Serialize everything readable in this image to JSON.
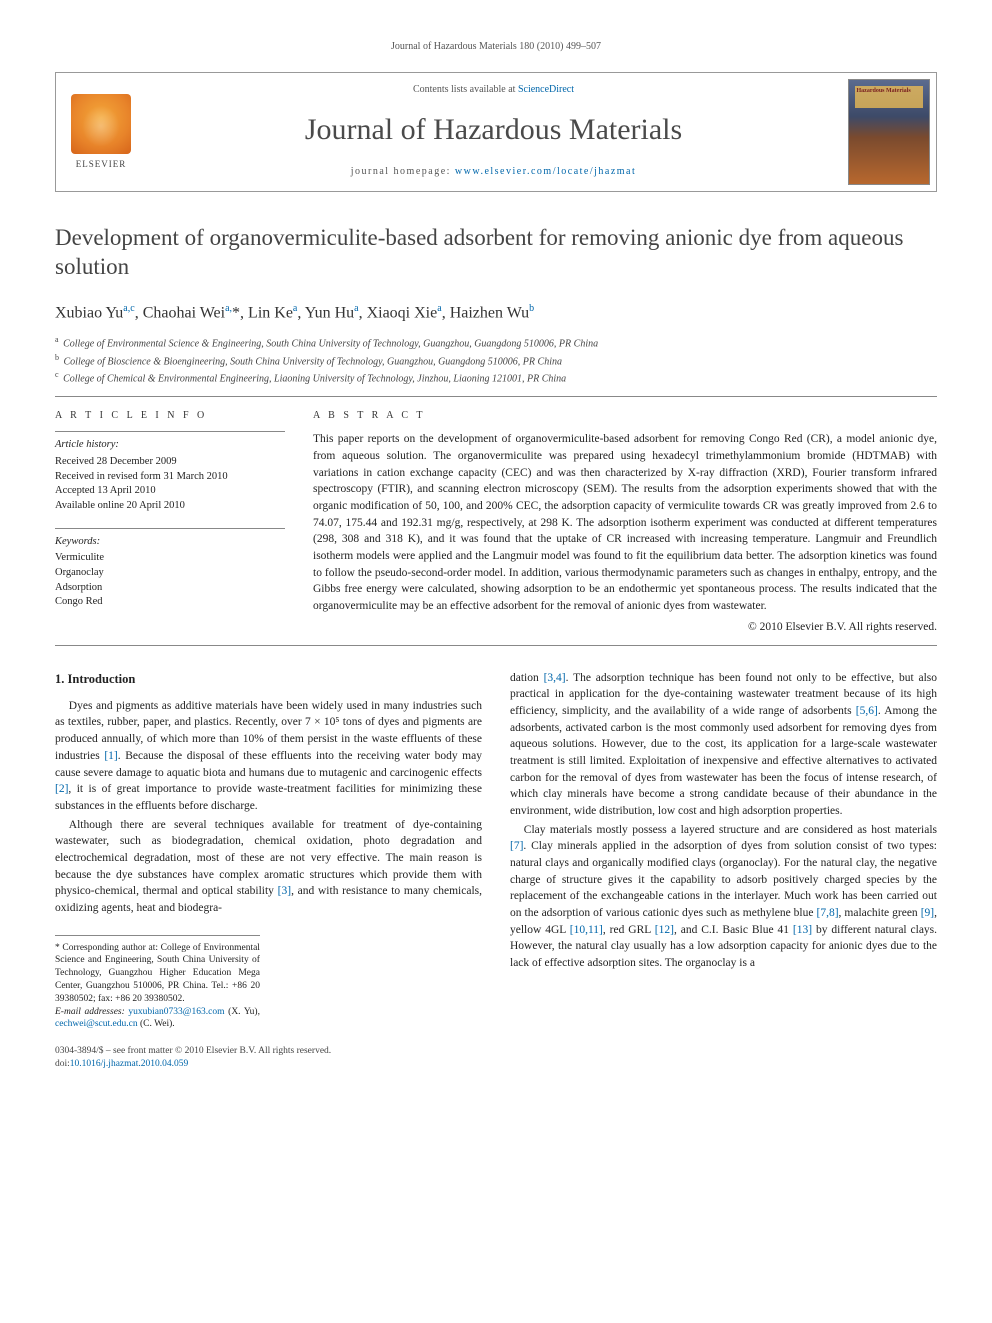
{
  "running_head": "Journal of Hazardous Materials 180 (2010) 499–507",
  "masthead": {
    "contents_prefix": "Contents lists available at ",
    "contents_link": "ScienceDirect",
    "journal_name": "Journal of Hazardous Materials",
    "homepage_prefix": "journal homepage: ",
    "homepage_url": "www.elsevier.com/locate/jhazmat",
    "publisher": "ELSEVIER",
    "cover_label": "Hazardous Materials"
  },
  "title": "Development of organovermiculite-based adsorbent for removing anionic dye from aqueous solution",
  "authors_html": "Xubiao Yu<sup>a,c</sup>, Chaohai Wei<sup>a,</sup><span class='star'>*</span>, Lin Ke<sup>a</sup>, Yun Hu<sup>a</sup>, Xiaoqi Xie<sup>a</sup>, Haizhen Wu<sup>b</sup>",
  "affiliations": [
    {
      "sup": "a",
      "text": "College of Environmental Science & Engineering, South China University of Technology, Guangzhou, Guangdong 510006, PR China"
    },
    {
      "sup": "b",
      "text": "College of Bioscience & Bioengineering, South China University of Technology, Guangzhou, Guangdong 510006, PR China"
    },
    {
      "sup": "c",
      "text": "College of Chemical & Environmental Engineering, Liaoning University of Technology, Jinzhou, Liaoning 121001, PR China"
    }
  ],
  "info": {
    "head": "A R T I C L E   I N F O",
    "history_head": "Article history:",
    "history": [
      "Received 28 December 2009",
      "Received in revised form 31 March 2010",
      "Accepted 13 April 2010",
      "Available online 20 April 2010"
    ],
    "keywords_head": "Keywords:",
    "keywords": [
      "Vermiculite",
      "Organoclay",
      "Adsorption",
      "Congo Red"
    ]
  },
  "abstract": {
    "head": "A B S T R A C T",
    "text": "This paper reports on the development of organovermiculite-based adsorbent for removing Congo Red (CR), a model anionic dye, from aqueous solution. The organovermiculite was prepared using hexadecyl trimethylammonium bromide (HDTMAB) with variations in cation exchange capacity (CEC) and was then characterized by X-ray diffraction (XRD), Fourier transform infrared spectroscopy (FTIR), and scanning electron microscopy (SEM). The results from the adsorption experiments showed that with the organic modification of 50, 100, and 200% CEC, the adsorption capacity of vermiculite towards CR was greatly improved from 2.6 to 74.07, 175.44 and 192.31 mg/g, respectively, at 298 K. The adsorption isotherm experiment was conducted at different temperatures (298, 308 and 318 K), and it was found that the uptake of CR increased with increasing temperature. Langmuir and Freundlich isotherm models were applied and the Langmuir model was found to fit the equilibrium data better. The adsorption kinetics was found to follow the pseudo-second-order model. In addition, various thermodynamic parameters such as changes in enthalpy, entropy, and the Gibbs free energy were calculated, showing adsorption to be an endothermic yet spontaneous process. The results indicated that the organovermiculite may be an effective adsorbent for the removal of anionic dyes from wastewater.",
    "copyright": "© 2010 Elsevier B.V. All rights reserved."
  },
  "body": {
    "h_intro": "1.  Introduction",
    "p1": "Dyes and pigments as additive materials have been widely used in many industries such as textiles, rubber, paper, and plastics. Recently, over 7 × 10⁵ tons of dyes and pigments are produced annually, of which more than 10% of them persist in the waste effluents of these industries [1]. Because the disposal of these effluents into the receiving water body may cause severe damage to aquatic biota and humans due to mutagenic and carcinogenic effects [2], it is of great importance to provide waste-treatment facilities for minimizing these substances in the effluents before discharge.",
    "p2": "Although there are several techniques available for treatment of dye-containing wastewater, such as biodegradation, chemical oxidation, photo degradation and electrochemical degradation, most of these are not very effective. The main reason is because the dye substances have complex aromatic structures which provide them with physico-chemical, thermal and optical stability [3], and with resistance to many chemicals, oxidizing agents, heat and biodegra-",
    "p3": "dation [3,4]. The adsorption technique has been found not only to be effective, but also practical in application for the dye-containing wastewater treatment because of its high efficiency, simplicity, and the availability of a wide range of adsorbents [5,6]. Among the adsorbents, activated carbon is the most commonly used adsorbent for removing dyes from aqueous solutions. However, due to the cost, its application for a large-scale wastewater treatment is still limited. Exploitation of inexpensive and effective alternatives to activated carbon for the removal of dyes from wastewater has been the focus of intense research, of which clay minerals have become a strong candidate because of their abundance in the environment, wide distribution, low cost and high adsorption properties.",
    "p4": "Clay materials mostly possess a layered structure and are considered as host materials [7]. Clay minerals applied in the adsorption of dyes from solution consist of two types: natural clays and organically modified clays (organoclay). For the natural clay, the negative charge of structure gives it the capability to adsorb positively charged species by the replacement of the exchangeable cations in the interlayer. Much work has been carried out on the adsorption of various cationic dyes such as methylene blue [7,8], malachite green [9], yellow 4GL [10,11], red GRL [12], and C.I. Basic Blue 41 [13] by different natural clays. However, the natural clay usually has a low adsorption capacity for anionic dyes due to the lack of effective adsorption sites. The organoclay is a"
  },
  "footnote": {
    "corr": "* Corresponding author at: College of Environmental Science and Engineering, South China University of Technology, Guangzhou Higher Education Mega Center, Guangzhou 510006, PR China. Tel.: +86 20 39380502; fax: +86 20 39380502.",
    "email_label": "E-mail addresses: ",
    "email1": "yuxubian0733@163.com",
    "email1_who": " (X. Yu), ",
    "email2": "cechwei@scut.edu.cn",
    "email2_who": " (C. Wei)."
  },
  "footer": {
    "line1": "0304-3894/$ – see front matter © 2010 Elsevier B.V. All rights reserved.",
    "doi_label": "doi:",
    "doi": "10.1016/j.jhazmat.2010.04.059"
  },
  "colors": {
    "link": "#0066aa",
    "text": "#222222",
    "rule": "#888888"
  }
}
